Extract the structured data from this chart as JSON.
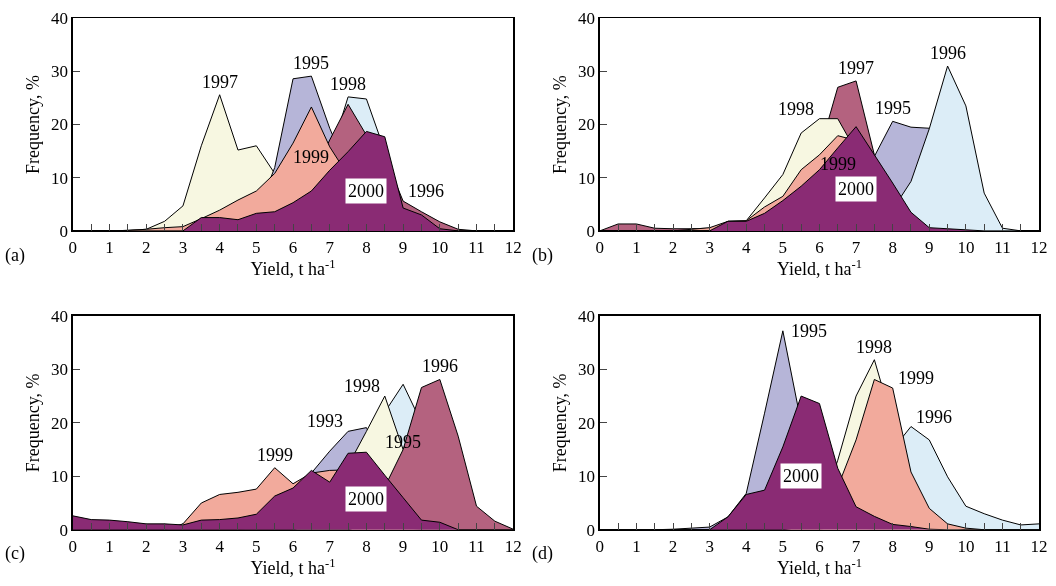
{
  "chart_data": [
    {
      "type": "area",
      "xlabel": "Yield, t ha$^{-1}$",
      "ylabel": "Frequency, %",
      "annotations": [
        "(a)"
      ],
      "grid": false,
      "x": [
        0,
        0.5,
        1,
        1.5,
        2,
        2.5,
        3,
        3.5,
        4,
        4.5,
        5,
        5.5,
        6,
        6.5,
        7,
        7.5,
        8,
        8.5,
        9,
        9.5,
        10,
        10.5,
        11,
        11.5,
        12
      ],
      "xlim": [
        0,
        12
      ],
      "xticks": [
        0,
        {
          "value": 0.5,
          "label": null
        },
        1,
        {
          "value": 1.5,
          "label": null
        },
        2,
        {
          "value": 2.5,
          "label": null
        },
        3,
        {
          "value": 3.5,
          "label": null
        },
        4,
        {
          "value": 4.5,
          "label": null
        },
        5,
        {
          "value": 5.5,
          "label": null
        },
        6,
        {
          "value": 6.5,
          "label": null
        },
        7,
        {
          "value": 7.5,
          "label": null
        },
        8,
        {
          "value": 8.5,
          "label": null
        },
        9,
        {
          "value": 9.5,
          "label": null
        },
        10,
        {
          "value": 10.5,
          "label": null
        },
        11,
        {
          "value": 11.5,
          "label": null
        },
        12
      ],
      "ylim": [
        0,
        40
      ],
      "yticks": [
        0,
        10,
        20,
        30,
        40
      ],
      "series": [
        {
          "name": "1997",
          "color": "#f7f7e1",
          "values": [
            0,
            0,
            0,
            0.1,
            0.3,
            1.8,
            4.7,
            16,
            25.6,
            15.2,
            16,
            10.8,
            4,
            1,
            0,
            0,
            0,
            0,
            0,
            0,
            0,
            0,
            0,
            0,
            0
          ]
        },
        {
          "name": "1995",
          "color": "#b6b5d8",
          "values": [
            0,
            0,
            0,
            0,
            0,
            0,
            0,
            0,
            0.5,
            1,
            3,
            11.9,
            28.6,
            29.1,
            19.3,
            null,
            3,
            1,
            0,
            0,
            0,
            0,
            0,
            0,
            0
          ]
        },
        {
          "name": "1998",
          "color": "#dcedf7",
          "values": [
            0,
            0,
            0,
            0,
            0,
            0,
            0,
            0,
            0,
            0,
            0,
            0.5,
            1,
            3,
            14,
            25.2,
            24.8,
            15,
            4,
            2,
            0.5,
            0,
            0,
            0,
            0
          ]
        },
        {
          "name": "1996",
          "color": "#b4627f",
          "values": [
            0,
            0,
            0,
            0,
            0,
            0,
            0,
            0,
            0,
            0.5,
            1,
            2,
            5,
            10,
            17.1,
            23.8,
            18,
            14,
            5.6,
            3.6,
            1.7,
            0.3,
            0,
            0,
            0
          ]
        },
        {
          "name": "1999",
          "color": "#f2aa9c",
          "values": [
            0,
            0,
            0,
            0.1,
            0.3,
            0.6,
            0.8,
            2.3,
            3.9,
            5.8,
            7.5,
            10.8,
            16.5,
            23.3,
            15.8,
            null,
            5,
            2,
            0.5,
            0,
            0,
            0,
            0,
            0,
            0
          ]
        },
        {
          "name": "2000",
          "color": "#8a2b74",
          "values": [
            0,
            0,
            0,
            0,
            0,
            0,
            0,
            2.5,
            2.5,
            2.1,
            3.3,
            3.6,
            5.3,
            7.5,
            11.4,
            14.9,
            18.7,
            17.7,
            4.3,
            3.0,
            0.4,
            0,
            0,
            0,
            0
          ]
        }
      ]
    },
    {
      "type": "area",
      "xlabel": "Yield, t ha$^{-1}$",
      "ylabel": "Frequency, %",
      "annotations": [
        "(b)"
      ],
      "grid": false,
      "x": [
        0,
        0.5,
        1,
        1.5,
        2,
        2.5,
        3,
        3.5,
        4,
        4.5,
        5,
        5.5,
        6,
        6.5,
        7,
        7.5,
        8,
        8.5,
        9,
        9.5,
        10,
        10.5,
        11,
        11.5,
        12
      ],
      "xlim": [
        0,
        12
      ],
      "xticks": [
        0,
        {
          "value": 0.5,
          "label": null
        },
        1,
        {
          "value": 1.5,
          "label": null
        },
        2,
        {
          "value": 2.5,
          "label": null
        },
        3,
        {
          "value": 3.5,
          "label": null
        },
        4,
        {
          "value": 4.5,
          "label": null
        },
        5,
        {
          "value": 5.5,
          "label": null
        },
        6,
        {
          "value": 6.5,
          "label": null
        },
        7,
        {
          "value": 7.5,
          "label": null
        },
        8,
        {
          "value": 8.5,
          "label": null
        },
        9,
        {
          "value": 9.5,
          "label": null
        },
        10,
        {
          "value": 10.5,
          "label": null
        },
        11,
        {
          "value": 11.5,
          "label": null
        },
        12
      ],
      "ylim": [
        0,
        40
      ],
      "yticks": [
        0,
        10,
        20,
        30,
        40
      ],
      "series": [
        {
          "name": "1997",
          "color": "#b4627f",
          "values": [
            0,
            1.3,
            1.3,
            0.5,
            0.4,
            0.4,
            0.5,
            1,
            1.5,
            3,
            6,
            10,
            15,
            27,
            28.2,
            14.3,
            6,
            3,
            1,
            0.5,
            0,
            0,
            0,
            0,
            0
          ]
        },
        {
          "name": "1998",
          "color": "#f7f7e1",
          "values": [
            0,
            0,
            0,
            0,
            0,
            0,
            0,
            1.8,
            1.9,
            6.2,
            10.6,
            18.4,
            21.1,
            21.1,
            15,
            null,
            2,
            0.5,
            0,
            0,
            0,
            0,
            0,
            0,
            0
          ]
        },
        {
          "name": "1999",
          "color": "#f2aa9c",
          "values": [
            0,
            0,
            0,
            0,
            0,
            0.3,
            0.6,
            1.8,
            1.9,
            4.5,
            6.5,
            11.5,
            14.3,
            17.9,
            17,
            null,
            4,
            1,
            0,
            0,
            0,
            0,
            0,
            0,
            0
          ]
        },
        {
          "name": "1995",
          "color": "#b6b5d8",
          "values": [
            0,
            0,
            0,
            0,
            0,
            0,
            0,
            0,
            0,
            0,
            0,
            0.5,
            2,
            5,
            null,
            14,
            20.6,
            19.5,
            19.3,
            10,
            4,
            1,
            0,
            0,
            0
          ]
        },
        {
          "name": "1996",
          "color": "#dcedf7",
          "values": [
            0,
            0,
            0,
            0,
            0,
            0,
            0,
            0,
            0,
            0,
            0,
            0,
            0,
            0,
            0.5,
            1.5,
            4,
            9.3,
            19.2,
            31,
            23.5,
            7.1,
            0.5,
            0,
            0
          ]
        },
        {
          "name": "2000",
          "color": "#8a2b74",
          "values": [
            0,
            0,
            0,
            0,
            0,
            0,
            0,
            1.8,
            1.8,
            3.3,
            5.7,
            8.4,
            11.5,
            15.6,
            19.6,
            14.3,
            9.0,
            3.5,
            0.6,
            0.4,
            0.2,
            0,
            0,
            0,
            0
          ]
        }
      ]
    },
    {
      "type": "area",
      "xlabel": "Yield, t ha$^{-1}$",
      "ylabel": "Frequency, %",
      "annotations": [
        "(c)"
      ],
      "grid": false,
      "x": [
        0,
        0.5,
        1,
        1.5,
        2,
        2.5,
        3,
        3.5,
        4,
        4.5,
        5,
        5.5,
        6,
        6.5,
        7,
        7.5,
        8,
        8.5,
        9,
        9.5,
        10,
        10.5,
        11,
        11.5,
        12
      ],
      "xlim": [
        0,
        12
      ],
      "xticks": [
        0,
        {
          "value": 0.5,
          "label": null
        },
        1,
        {
          "value": 1.5,
          "label": null
        },
        2,
        {
          "value": 2.5,
          "label": null
        },
        3,
        {
          "value": 3.5,
          "label": null
        },
        4,
        {
          "value": 4.5,
          "label": null
        },
        5,
        {
          "value": 5.5,
          "label": null
        },
        6,
        {
          "value": 6.5,
          "label": null
        },
        7,
        {
          "value": 7.5,
          "label": null
        },
        8,
        {
          "value": 8.5,
          "label": null
        },
        9,
        {
          "value": 9.5,
          "label": null
        },
        10,
        {
          "value": 10.5,
          "label": null
        },
        11,
        {
          "value": 11.5,
          "label": null
        },
        12
      ],
      "ylim": [
        0,
        40
      ],
      "yticks": [
        0,
        10,
        20,
        30,
        40
      ],
      "series": [
        {
          "name": "1995",
          "color": "#dcedf7",
          "values": [
            0,
            0,
            0,
            0,
            0,
            0,
            0,
            0,
            0,
            0,
            0,
            0,
            0,
            0.5,
            3,
            null,
            15,
            22,
            27.2,
            20,
            8,
            2,
            0,
            0,
            0
          ]
        },
        {
          "name": "1993",
          "color": "#b6b5d8",
          "values": [
            0,
            0,
            0,
            0,
            0,
            0,
            0,
            0,
            0,
            0,
            0.5,
            2,
            5,
            10.6,
            14.7,
            18.4,
            19.1,
            12,
            5,
            1,
            0,
            0,
            0,
            0,
            0
          ]
        },
        {
          "name": "1999",
          "color": "#f2aa9c",
          "values": [
            0,
            0,
            0,
            0,
            0,
            0,
            1.1,
            5,
            6.6,
            7,
            7.6,
            11.6,
            8.6,
            10.6,
            11.1,
            11.2,
            null,
            2,
            0.5,
            0,
            0,
            0,
            0,
            0,
            0
          ]
        },
        {
          "name": "1998",
          "color": "#f7f7e1",
          "values": [
            0,
            0,
            0,
            0,
            0,
            0,
            0,
            0,
            0,
            0,
            0,
            0,
            0,
            1,
            5,
            12,
            18.4,
            25,
            15,
            6.3,
            1.4,
            0,
            0,
            0,
            0
          ]
        },
        {
          "name": "1996",
          "color": "#b4627f",
          "values": [
            0,
            0,
            0,
            0,
            0,
            0,
            0,
            0,
            0,
            0,
            0,
            0,
            0,
            0,
            0,
            0,
            1,
            null,
            15,
            26.6,
            28.1,
            17.5,
            4.4,
            1.6,
            0.1
          ]
        },
        {
          "name": "2000",
          "color": "#8a2b74",
          "values": [
            2.6,
            1.9,
            1.8,
            1.5,
            1.1,
            1.1,
            0.9,
            1.8,
            1.9,
            2.2,
            2.9,
            6.3,
            7.8,
            11.1,
            8.9,
            14.3,
            14.5,
            10.2,
            6.0,
            1.8,
            1.4,
            0,
            0,
            0,
            0
          ]
        }
      ]
    },
    {
      "type": "area",
      "xlabel": "Yield, t ha$^{-1}$",
      "ylabel": "Frequency, %",
      "annotations": [
        "(d)"
      ],
      "grid": false,
      "x": [
        0,
        0.5,
        1,
        1.5,
        2,
        2.5,
        3,
        3.5,
        4,
        4.5,
        5,
        5.5,
        6,
        6.5,
        7,
        7.5,
        8,
        8.5,
        9,
        9.5,
        10,
        10.5,
        11,
        11.5,
        12
      ],
      "xlim": [
        0,
        12
      ],
      "xticks": [
        0,
        {
          "value": 0.5,
          "label": null
        },
        1,
        {
          "value": 1.5,
          "label": null
        },
        2,
        {
          "value": 2.5,
          "label": null
        },
        3,
        {
          "value": 3.5,
          "label": null
        },
        4,
        {
          "value": 4.5,
          "label": null
        },
        5,
        {
          "value": 5.5,
          "label": null
        },
        6,
        {
          "value": 6.5,
          "label": null
        },
        7,
        {
          "value": 7.5,
          "label": null
        },
        8,
        {
          "value": 8.5,
          "label": null
        },
        9,
        {
          "value": 9.5,
          "label": null
        },
        10,
        {
          "value": 10.5,
          "label": null
        },
        11,
        {
          "value": 11.5,
          "label": null
        },
        12
      ],
      "ylim": [
        0,
        40
      ],
      "yticks": [
        0,
        10,
        20,
        30,
        40
      ],
      "series": [
        {
          "name": "1995",
          "color": "#b6b5d8",
          "values": [
            0,
            0,
            0,
            0,
            0.1,
            0.3,
            0.5,
            2.4,
            6.8,
            21.8,
            37.2,
            20,
            null,
            2,
            0.5,
            0,
            0,
            0,
            0,
            0,
            0,
            0,
            0,
            0,
            0
          ]
        },
        {
          "name": "1996",
          "color": "#dcedf7",
          "values": [
            0,
            0,
            0,
            0,
            0,
            0,
            0,
            0,
            0,
            0,
            0,
            0,
            0,
            1,
            3,
            8,
            15,
            19.3,
            16.8,
            9.9,
            4.4,
            3,
            1.8,
            0.9,
            1.1
          ]
        },
        {
          "name": "1998",
          "color": "#f7f7e1",
          "values": [
            0,
            0,
            0,
            0,
            0,
            0,
            0,
            0,
            0,
            0,
            0,
            0.5,
            3,
            13,
            25,
            31.8,
            20,
            8,
            2,
            0.5,
            0,
            0,
            0,
            0,
            0
          ]
        },
        {
          "name": "1999",
          "color": "#f2aa9c",
          "values": [
            0,
            0,
            0,
            0,
            0,
            0,
            0,
            0,
            0,
            0,
            0,
            0.5,
            2,
            8,
            16.8,
            28.1,
            26.5,
            10.8,
            4.0,
            1.1,
            0.3,
            0,
            0,
            0,
            0
          ]
        },
        {
          "name": "2000",
          "color": "#8a2b74",
          "values": [
            0,
            0,
            0,
            0,
            0,
            0,
            0,
            2.4,
            6.6,
            7.4,
            15.5,
            25,
            23.6,
            11.5,
            4.3,
            2.5,
            1.0,
            0.6,
            0.1,
            0,
            0,
            0,
            0,
            0,
            0
          ]
        }
      ]
    }
  ]
}
